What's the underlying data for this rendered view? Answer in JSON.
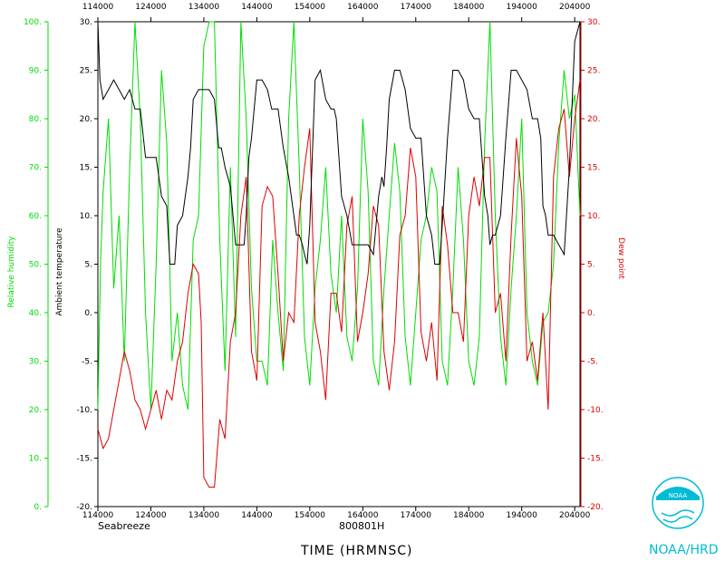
{
  "chart_data": {
    "type": "line",
    "xlabel": "TIME (HRMNSC)",
    "subtitle": "800801H",
    "annotation": "Seabreeze",
    "x_ticks": [
      "114000",
      "124000",
      "134000",
      "144000",
      "154000",
      "164000",
      "174000",
      "184000",
      "194000",
      "204000"
    ],
    "xlim": [
      114000,
      205000
    ],
    "left_inner_axis": {
      "label": "Ambient temperature",
      "range": [
        -20,
        30
      ],
      "ticks": [
        "-20.",
        "-15.",
        "-10.",
        "-5.",
        "0.",
        "5.",
        "10.",
        "15.",
        "20.",
        "25.",
        "30."
      ]
    },
    "left_outer_axis": {
      "label": "Relative humidity",
      "range": [
        0,
        100
      ],
      "ticks": [
        "0.",
        "10.",
        "20.",
        "30.",
        "40.",
        "50.",
        "60.",
        "70.",
        "80.",
        "90.",
        "100."
      ]
    },
    "right_axis": {
      "label": "Dew point",
      "range": [
        -20,
        30
      ],
      "ticks": [
        "-20.",
        "-15.",
        "-10.",
        "-5.",
        "0.",
        "5.",
        "10.",
        "15.",
        "20.",
        "25.",
        "30."
      ]
    },
    "series": [
      {
        "name": "Ambient temperature",
        "color": "#000000",
        "axis": "left_inner",
        "x": [
          114000,
          114400,
          115000,
          116000,
          117000,
          118000,
          119000,
          120000,
          121000,
          121600,
          122000,
          123000,
          124000,
          125000,
          126000,
          127000,
          127600,
          128000,
          128500,
          129000,
          130000,
          131000,
          131500,
          132000,
          133000,
          134000,
          135000,
          136000,
          136800,
          137300,
          138000,
          139000,
          140000,
          141000,
          141600,
          142000,
          142500,
          143000,
          144000,
          145000,
          146000,
          146800,
          147300,
          148000,
          149000,
          150000,
          151000,
          151500,
          152000,
          152600,
          153000,
          153500,
          154000,
          155000,
          156000,
          157000,
          158000,
          158600,
          159000,
          160000,
          161000,
          162000,
          162600,
          163000,
          164000,
          165000,
          166000,
          167000,
          167600,
          168000,
          168500,
          169000,
          170000,
          171000,
          172000,
          173000,
          174000,
          175000,
          176000,
          177000,
          177600,
          178000,
          178500,
          179000,
          180000,
          181000,
          182000,
          183000,
          184000,
          185000,
          186000,
          187000,
          187600,
          188000,
          188500,
          189000,
          190000,
          191000,
          192000,
          193000,
          194000,
          195000,
          196000,
          197000,
          197600,
          198000,
          198500,
          199000,
          200000,
          201000,
          202000,
          203000,
          204000,
          205000
        ],
        "y": [
          30,
          24,
          22,
          23,
          24,
          23,
          22,
          23,
          21,
          21,
          21,
          16,
          16,
          16,
          12,
          11,
          5,
          5,
          5,
          9,
          10,
          14,
          17,
          22,
          23,
          23,
          23,
          22,
          17,
          17,
          15,
          13,
          7,
          7,
          7,
          10,
          16,
          18,
          24,
          24,
          23,
          21,
          21,
          21,
          17,
          14,
          10,
          8,
          8,
          7,
          6,
          5,
          9,
          24,
          25,
          22,
          21,
          21,
          20,
          12,
          10,
          7,
          7,
          7,
          7,
          7,
          6,
          12,
          14,
          13,
          17,
          22,
          25,
          25,
          23,
          19,
          18,
          18,
          10,
          8,
          5,
          5,
          5,
          9,
          18,
          25,
          25,
          24,
          21,
          20,
          20,
          12,
          10,
          7,
          8,
          8,
          10,
          18,
          25,
          25,
          24,
          23,
          20,
          20,
          18,
          11,
          10,
          8,
          8,
          7,
          6,
          15,
          28,
          30
        ]
      },
      {
        "name": "Dew point",
        "color": "#dd0000",
        "axis": "right",
        "x": [
          114000,
          115000,
          116000,
          117000,
          118000,
          119000,
          120000,
          121000,
          122000,
          123000,
          124000,
          125000,
          126000,
          127000,
          128000,
          129000,
          130000,
          131000,
          132000,
          133000,
          133500,
          134000,
          135000,
          136000,
          137000,
          138000,
          139000,
          140000,
          141000,
          142000,
          143000,
          144000,
          145000,
          146000,
          147000,
          148000,
          149000,
          150000,
          151000,
          152000,
          153000,
          154000,
          155000,
          156000,
          157000,
          158000,
          159000,
          160000,
          161000,
          162000,
          163000,
          164000,
          165000,
          166000,
          167000,
          168000,
          169000,
          170000,
          171000,
          172000,
          173000,
          174000,
          175000,
          176000,
          177000,
          178000,
          179000,
          180000,
          181000,
          182000,
          183000,
          184000,
          185000,
          186000,
          187000,
          188000,
          189000,
          190000,
          191000,
          192000,
          193000,
          194000,
          195000,
          196000,
          197000,
          198000,
          199000,
          200000,
          201000,
          202000,
          203000,
          204000,
          205000
        ],
        "y": [
          -12,
          -14,
          -13,
          -10,
          -7,
          -4,
          -6,
          -9,
          -10,
          -12,
          -10,
          -8,
          -11,
          -8,
          -9,
          -5,
          -3,
          2,
          5,
          4,
          -1,
          -17,
          -18,
          -18,
          -11,
          -13,
          -3,
          0,
          10,
          14,
          -4,
          -7,
          11,
          13,
          12,
          4,
          -5,
          0,
          -1,
          10,
          15,
          19,
          -1,
          -4,
          -9,
          2,
          2,
          -2,
          9,
          12,
          -3,
          0,
          4,
          11,
          9,
          -4,
          -8,
          -3,
          8,
          10,
          17,
          14,
          -2,
          -5,
          -1,
          -7,
          11,
          7,
          0,
          0,
          -3,
          10,
          14,
          11,
          16,
          16,
          0,
          2,
          -5,
          8,
          18,
          12,
          -5,
          -3,
          -7,
          0,
          -10,
          14,
          19,
          21,
          14,
          20,
          24
        ]
      },
      {
        "name": "Relative humidity",
        "color": "#00dd00",
        "axis": "left_outer",
        "x": [
          114000,
          114500,
          115000,
          116000,
          117000,
          118000,
          119000,
          120000,
          121000,
          122000,
          123000,
          124000,
          125000,
          126000,
          127000,
          128000,
          129000,
          130000,
          131000,
          132000,
          133000,
          134000,
          135000,
          136000,
          137000,
          138000,
          139000,
          140000,
          141000,
          142000,
          143000,
          144000,
          145000,
          146000,
          147000,
          148000,
          149000,
          150000,
          151000,
          152000,
          153000,
          154000,
          155000,
          156000,
          157000,
          158000,
          159000,
          160000,
          161000,
          162000,
          163000,
          164000,
          165000,
          166000,
          167000,
          168000,
          169000,
          170000,
          171000,
          172000,
          173000,
          174000,
          175000,
          176000,
          177000,
          178000,
          179000,
          180000,
          181000,
          182000,
          183000,
          184000,
          185000,
          186000,
          187000,
          188000,
          189000,
          190000,
          191000,
          192000,
          193000,
          194000,
          195000,
          196000,
          197000,
          198000,
          199000,
          200000,
          201000,
          202000,
          203000,
          204000,
          205000
        ],
        "y": [
          20,
          50,
          65,
          80,
          45,
          60,
          30,
          70,
          100,
          80,
          40,
          20,
          50,
          90,
          75,
          30,
          40,
          25,
          20,
          55,
          60,
          95,
          100,
          100,
          55,
          28,
          70,
          35,
          100,
          80,
          45,
          30,
          30,
          25,
          55,
          40,
          28,
          80,
          100,
          70,
          35,
          25,
          45,
          55,
          70,
          48,
          40,
          60,
          35,
          30,
          45,
          80,
          65,
          30,
          25,
          45,
          60,
          75,
          65,
          35,
          25,
          40,
          55,
          60,
          70,
          65,
          30,
          25,
          45,
          70,
          55,
          30,
          25,
          35,
          75,
          100,
          60,
          35,
          25,
          45,
          60,
          80,
          40,
          30,
          25,
          38,
          40,
          50,
          75,
          90,
          80,
          85,
          60
        ]
      }
    ]
  },
  "logo": {
    "org": "NOAA/HRD",
    "emblem_text": "NOAA"
  }
}
